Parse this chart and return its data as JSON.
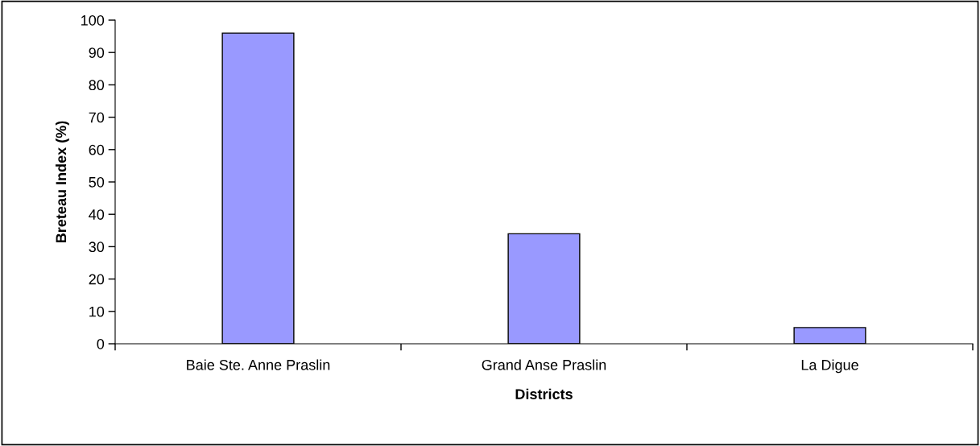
{
  "chart_data": {
    "type": "bar",
    "xlabel": "Districts",
    "ylabel": "Breteau Index (%)",
    "categories": [
      "Baie Ste. Anne Praslin",
      "Grand Anse Praslin",
      "La Digue"
    ],
    "values": [
      96,
      34,
      5
    ],
    "color": "#9999ff",
    "ylim": [
      0,
      100
    ],
    "yticks": [
      0,
      10,
      20,
      30,
      40,
      50,
      60,
      70,
      80,
      90,
      100
    ],
    "grid": false,
    "legend": false
  }
}
